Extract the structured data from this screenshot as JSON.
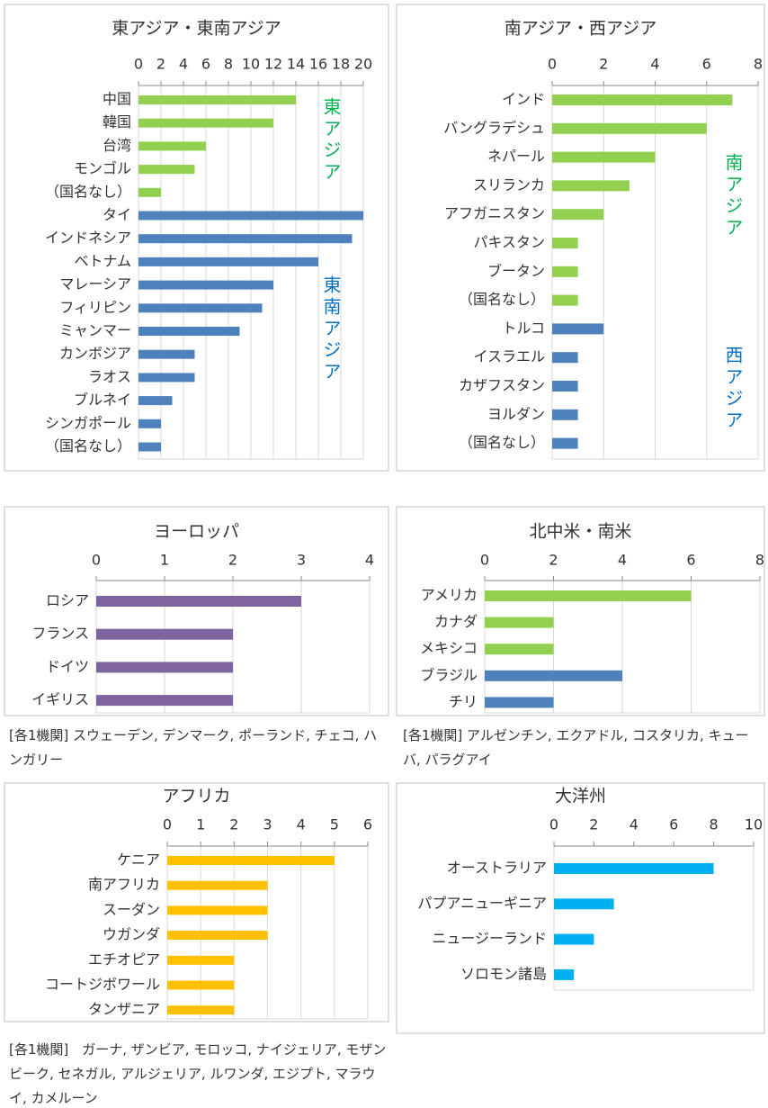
{
  "chart_data": [
    {
      "type": "barh",
      "title": "東アジア・東南アジア",
      "categories": [
        "中国",
        "韓国",
        "台湾",
        "モンゴル",
        "（国名なし）",
        "タイ",
        "インドネシア",
        "ベトナム",
        "マレーシア",
        "フィリピン",
        "ミャンマー",
        "カンボジア",
        "ラオス",
        "ブルネイ",
        "シンガポール",
        "（国名なし）"
      ],
      "values": [
        14,
        12,
        6,
        5,
        2,
        20,
        19,
        16,
        12,
        11,
        9,
        5,
        5,
        3,
        2,
        2
      ],
      "colors": [
        "#92d050",
        "#92d050",
        "#92d050",
        "#92d050",
        "#92d050",
        "#4f81bd",
        "#4f81bd",
        "#4f81bd",
        "#4f81bd",
        "#4f81bd",
        "#4f81bd",
        "#4f81bd",
        "#4f81bd",
        "#4f81bd",
        "#4f81bd",
        "#4f81bd"
      ],
      "xlim": [
        0,
        20
      ],
      "xticks": [
        0,
        2,
        4,
        6,
        8,
        10,
        12,
        14,
        16,
        18,
        20
      ],
      "grid": true,
      "annotations": [
        {
          "text": "東アジア",
          "color": "#00b050"
        },
        {
          "text": "東南アジア",
          "color": "#0070c0"
        }
      ]
    },
    {
      "type": "barh",
      "title": "南アジア・西アジア",
      "categories": [
        "インド",
        "バングラデシュ",
        "ネパール",
        "スリランカ",
        "アフガニスタン",
        "パキスタン",
        "ブータン",
        "（国名なし）",
        "トルコ",
        "イスラエル",
        "カザフスタン",
        "ヨルダン",
        "（国名なし）"
      ],
      "values": [
        7,
        6,
        4,
        3,
        2,
        1,
        1,
        1,
        2,
        1,
        1,
        1,
        1
      ],
      "colors": [
        "#92d050",
        "#92d050",
        "#92d050",
        "#92d050",
        "#92d050",
        "#92d050",
        "#92d050",
        "#92d050",
        "#4f81bd",
        "#4f81bd",
        "#4f81bd",
        "#4f81bd",
        "#4f81bd"
      ],
      "xlim": [
        0,
        8
      ],
      "xticks": [
        0,
        2,
        4,
        6,
        8
      ],
      "grid": true,
      "annotations": [
        {
          "text": "南アジア",
          "color": "#00b050"
        },
        {
          "text": "西アジア",
          "color": "#0070c0"
        }
      ]
    },
    {
      "type": "barh",
      "title": "ヨーロッパ",
      "categories": [
        "ロシア",
        "フランス",
        "ドイツ",
        "イギリス"
      ],
      "values": [
        3,
        2,
        2,
        2
      ],
      "color": "#8064a2",
      "xlim": [
        0,
        4
      ],
      "xticks": [
        0,
        1,
        2,
        3,
        4
      ],
      "grid": true,
      "note": "[各1機関] スウェーデン, デンマーク, ポーランド, チェコ, ハンガリー"
    },
    {
      "type": "barh",
      "title": "北中米・南米",
      "categories": [
        "アメリカ",
        "カナダ",
        "メキシコ",
        "ブラジル",
        "チリ"
      ],
      "values": [
        6,
        2,
        2,
        4,
        2
      ],
      "colors": [
        "#92d050",
        "#92d050",
        "#92d050",
        "#4f81bd",
        "#4f81bd"
      ],
      "xlim": [
        0,
        8
      ],
      "xticks": [
        0,
        2,
        4,
        6,
        8
      ],
      "grid": true,
      "note": "[各1機関] アルゼンチン, エクアドル, コスタリカ, キューバ, パラグアイ"
    },
    {
      "type": "barh",
      "title": "アフリカ",
      "categories": [
        "ケニア",
        "南アフリカ",
        "スーダン",
        "ウガンダ",
        "エチオピア",
        "コートジボワール",
        "タンザニア"
      ],
      "values": [
        5,
        3,
        3,
        3,
        2,
        2,
        2
      ],
      "color": "#ffc000",
      "xlim": [
        0,
        6
      ],
      "xticks": [
        0,
        1,
        2,
        3,
        4,
        5,
        6
      ],
      "grid": true,
      "note": "[各1機関]　ガーナ, ザンビア, モロッコ, ナイジェリア, モザンビーク, セネガル, アルジェリア, ルワンダ, エジプト, マラウイ, カメルーン"
    },
    {
      "type": "barh",
      "title": "大洋州",
      "categories": [
        "オーストラリア",
        "パプアニューギニア",
        "ニュージーランド",
        "ソロモン諸島"
      ],
      "values": [
        8,
        3,
        2,
        1
      ],
      "color": "#00b0f0",
      "xlim": [
        0,
        10
      ],
      "xticks": [
        0,
        2,
        4,
        6,
        8,
        10
      ],
      "grid": false
    }
  ]
}
